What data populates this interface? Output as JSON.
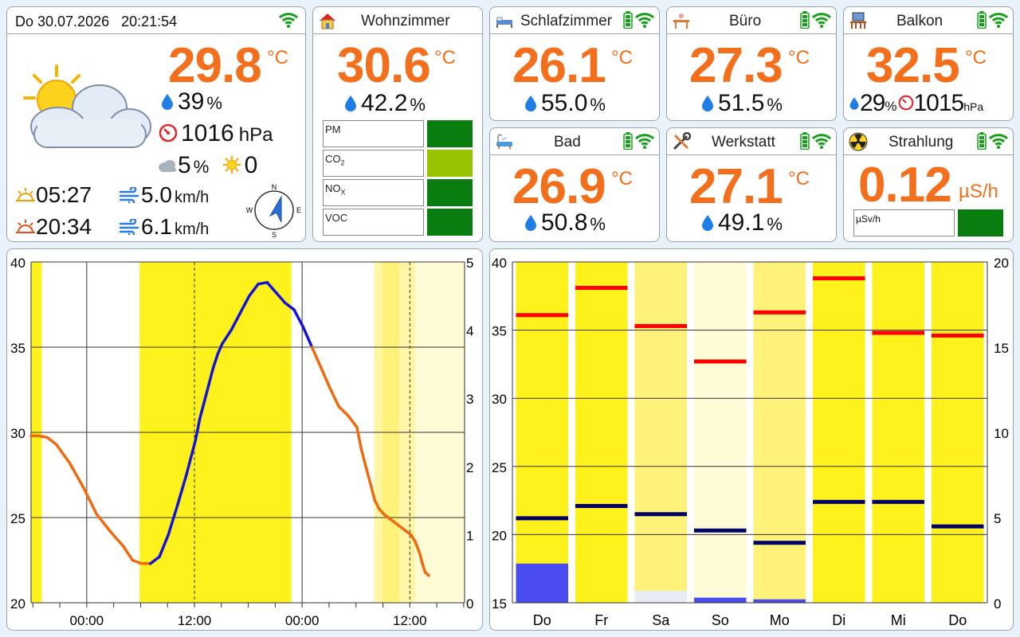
{
  "header": {
    "datetime": "Do 30.07.2026   20:21:54"
  },
  "outdoor": {
    "temp": "29.8",
    "temp_unit": "°C",
    "humidity": "39",
    "humidity_unit": "%",
    "pressure": "1016",
    "pressure_unit": "hPa",
    "cloud": "5",
    "cloud_unit": "%",
    "uv": "0",
    "sunrise": "05:27",
    "sunset": "20:34",
    "wind": "5.0",
    "gust": "6.1",
    "wind_unit": "km/h",
    "compass_n": "N",
    "compass_e": "E",
    "compass_s": "S",
    "compass_w": "W"
  },
  "wohnzimmer": {
    "title": "Wohnzimmer",
    "temp": "30.6",
    "temp_unit": "°C",
    "humidity": "42.2",
    "humidity_unit": "%",
    "air_quality": [
      {
        "label": "PM",
        "color": "#0a7d10"
      },
      {
        "label": "CO",
        "sub": "2",
        "color": "#96c400"
      },
      {
        "label": "NO",
        "sub": "X",
        "color": "#0a7d10"
      },
      {
        "label": "VOC",
        "color": "#0a7d10"
      }
    ]
  },
  "rooms": [
    {
      "title": "Schlafzimmer",
      "temp": "26.1",
      "temp_unit": "°C",
      "humidity": "55.0",
      "humidity_unit": "%",
      "icon": "bed-icon"
    },
    {
      "title": "Büro",
      "temp": "27.3",
      "temp_unit": "°C",
      "humidity": "51.5",
      "humidity_unit": "%",
      "icon": "desk-icon"
    },
    {
      "title": "Bad",
      "temp": "26.9",
      "temp_unit": "°C",
      "humidity": "50.8",
      "humidity_unit": "%",
      "icon": "bathtub-icon"
    },
    {
      "title": "Werkstatt",
      "temp": "27.1",
      "temp_unit": "°C",
      "humidity": "49.1",
      "humidity_unit": "%",
      "icon": "tools-icon"
    }
  ],
  "balkon": {
    "title": "Balkon",
    "temp": "32.5",
    "temp_unit": "°C",
    "humidity": "29",
    "humidity_unit": "%",
    "pressure": "1015",
    "pressure_unit": "hPa"
  },
  "strahlung": {
    "title": "Strahlung",
    "value": "0.12",
    "unit": "µS/h",
    "bar_label": "µSv/h",
    "bar_color": "#0a7d10"
  },
  "colors": {
    "temp": "#f36f1b",
    "line_blue": "#1414d8",
    "line_orange": "#f06a10",
    "sun_bright": "#fff21c",
    "max_marker": "#ff0000",
    "min_marker": "#000066",
    "rain_bar": "#4a4cf0"
  },
  "chart_data": [
    {
      "type": "line",
      "ylim": [
        20,
        40
      ],
      "y2lim": [
        0,
        5
      ],
      "yticks": [
        "20",
        "25",
        "30",
        "35",
        "40"
      ],
      "y2ticks": [
        "0",
        "1",
        "2",
        "3",
        "4",
        "5"
      ],
      "xtick_labels": [
        "00:00",
        "12:00",
        "00:00",
        "12:00"
      ],
      "x_hours": [
        -22.3,
        26.0
      ],
      "xticks_hours": [
        0,
        12,
        24,
        36
      ],
      "series": [
        {
          "x": [
            -22.3,
            -21.5,
            -20.5,
            -19.5,
            -18,
            -16.5,
            -15,
            -13.5,
            -12,
            -11,
            -10,
            -9,
            -8,
            -7,
            -6,
            -5,
            -4,
            -3.5,
            -3,
            -2.5,
            -2,
            -1.5,
            -1,
            0,
            1,
            2,
            3,
            4,
            5,
            6,
            7,
            8,
            9,
            10,
            11,
            12,
            13,
            14,
            14.5,
            15,
            15.5,
            16,
            16.5,
            17,
            18,
            19,
            20,
            20.5,
            21,
            21.3,
            21.6,
            22
          ],
          "y": [
            29.8,
            29.8,
            29.7,
            29.3,
            28.2,
            26.8,
            25.2,
            24.2,
            23.3,
            22.5,
            22.3,
            22.3,
            22.7,
            24.0,
            25.7,
            27.5,
            29.5,
            30.8,
            31.8,
            32.8,
            33.8,
            34.6,
            35.2,
            36.0,
            37.0,
            38.0,
            38.7,
            38.8,
            38.2,
            37.6,
            37.2,
            36.2,
            35.0,
            33.8,
            32.6,
            31.5,
            31.0,
            30.3,
            29.0,
            28.0,
            27.0,
            26.0,
            25.5,
            25.2,
            24.8,
            24.4,
            24.0,
            23.6,
            22.9,
            22.3,
            21.8,
            21.6
          ]
        }
      ]
    },
    {
      "type": "bar",
      "categories": [
        "Do",
        "Fr",
        "Sa",
        "So",
        "Mo",
        "Di",
        "Mi",
        "Do"
      ],
      "ylim": [
        15,
        40
      ],
      "y2lim": [
        0,
        20
      ],
      "yticks": [
        "15",
        "20",
        "25",
        "30",
        "35",
        "40"
      ],
      "y2ticks": [
        "0",
        "5",
        "10",
        "15",
        "20"
      ],
      "max": [
        36.1,
        38.1,
        35.3,
        32.7,
        36.3,
        38.8,
        34.8,
        34.6
      ],
      "min": [
        21.2,
        22.1,
        21.5,
        20.3,
        19.4,
        22.4,
        22.4,
        20.6
      ],
      "rain": [
        2.3,
        0,
        0.7,
        0.3,
        0.2,
        0,
        0,
        0
      ],
      "sun_level": [
        "#fff21c",
        "#fff21c",
        "#fff27a",
        "#fffbd6",
        "#fff27a",
        "#fff21c",
        "#fff21c",
        "#fff21c"
      ]
    }
  ]
}
